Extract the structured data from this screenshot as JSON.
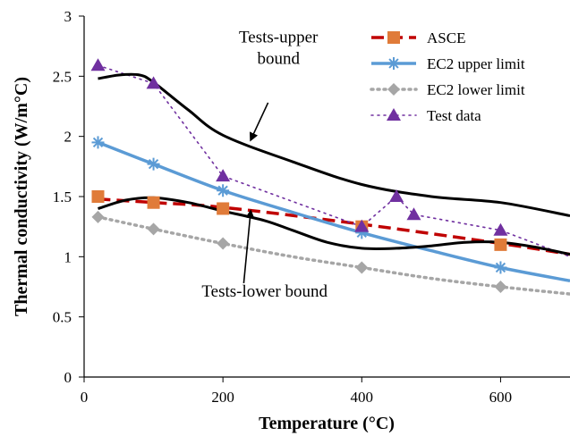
{
  "chart_data": {
    "type": "line",
    "xlabel": "Temperature (°C)",
    "ylabel": "Thermal conductivity (W/m°C)",
    "xlim": [
      0,
      700
    ],
    "ylim": [
      0,
      3
    ],
    "xticks": [
      "0",
      "200",
      "400",
      "600"
    ],
    "xtick_values": [
      0,
      200,
      400,
      600
    ],
    "yticks": [
      "0",
      "0.5",
      "1",
      "1.5",
      "2",
      "2.5",
      "3"
    ],
    "ytick_values": [
      0,
      0.5,
      1,
      1.5,
      2,
      2.5,
      3
    ],
    "grid": false,
    "legend_position": "top-right",
    "series": [
      {
        "name": "ASCE",
        "color": "#c00000",
        "line_style": "dashed",
        "marker": "square",
        "marker_color": "#e07b39",
        "x": [
          20,
          100,
          200,
          400,
          600,
          700
        ],
        "y": [
          1.48,
          1.45,
          1.41,
          1.27,
          1.11,
          1.02
        ],
        "marker_x": [
          20,
          100,
          200,
          400,
          600
        ],
        "marker_y": [
          1.5,
          1.45,
          1.4,
          1.25,
          1.1
        ]
      },
      {
        "name": "EC2 upper limit",
        "color": "#5b9bd5",
        "line_style": "solid",
        "marker": "asterisk",
        "marker_color": "#5b9bd5",
        "x": [
          20,
          100,
          200,
          300,
          400,
          500,
          600,
          700
        ],
        "y": [
          1.95,
          1.77,
          1.55,
          1.37,
          1.2,
          1.05,
          0.91,
          0.8
        ],
        "marker_x": [
          20,
          100,
          200,
          400,
          600
        ],
        "marker_y": [
          1.95,
          1.77,
          1.55,
          1.2,
          0.91
        ]
      },
      {
        "name": "EC2 lower limit",
        "color": "#a6a6a6",
        "line_style": "dotted",
        "marker": "diamond",
        "marker_color": "#a6a6a6",
        "x": [
          20,
          100,
          200,
          300,
          400,
          500,
          600,
          700
        ],
        "y": [
          1.33,
          1.23,
          1.11,
          1.0,
          0.91,
          0.82,
          0.75,
          0.69
        ],
        "marker_x": [
          20,
          100,
          200,
          400,
          600
        ],
        "marker_y": [
          1.33,
          1.23,
          1.11,
          0.91,
          0.75
        ]
      },
      {
        "name": "Test data",
        "color": "#7030a0",
        "line_style": "dotted",
        "marker": "triangle",
        "marker_color": "#7030a0",
        "x": [
          20,
          100,
          200,
          400,
          450,
          475,
          600,
          700
        ],
        "y": [
          2.59,
          2.44,
          1.67,
          1.25,
          1.5,
          1.35,
          1.22,
          1.0
        ],
        "marker_x": [
          20,
          100,
          200,
          400,
          450,
          475,
          600
        ],
        "marker_y": [
          2.59,
          2.44,
          1.67,
          1.25,
          1.5,
          1.35,
          1.22
        ]
      },
      {
        "color": "#000000",
        "line_style": "solid",
        "marker": "none",
        "x": [
          20,
          50,
          80,
          100,
          150,
          200,
          300,
          400,
          500,
          600,
          700
        ],
        "y": [
          2.48,
          2.51,
          2.51,
          2.45,
          2.22,
          2.01,
          1.79,
          1.6,
          1.5,
          1.45,
          1.34
        ]
      },
      {
        "color": "#000000",
        "line_style": "solid",
        "marker": "none",
        "x": [
          20,
          60,
          100,
          150,
          200,
          260,
          300,
          350,
          400,
          450,
          500,
          550,
          600,
          650,
          700
        ],
        "y": [
          1.4,
          1.47,
          1.49,
          1.45,
          1.38,
          1.3,
          1.22,
          1.12,
          1.07,
          1.07,
          1.09,
          1.12,
          1.12,
          1.08,
          1.02
        ]
      }
    ],
    "annotations": [
      {
        "text_lines": [
          "Tests-upper",
          "bound"
        ],
        "x": 280,
        "y": 2.78,
        "arrow_to": [
          240,
          1.97
        ],
        "arrow_from": [
          265,
          2.28
        ]
      },
      {
        "text_lines": [
          "Tests-lower bound"
        ],
        "x": 260,
        "y": 0.67,
        "arrow_to": [
          240,
          1.38
        ],
        "arrow_from": [
          230,
          0.78
        ]
      }
    ]
  }
}
